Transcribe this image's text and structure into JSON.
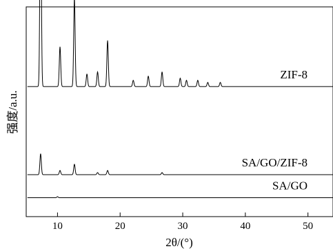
{
  "chart_data": {
    "type": "line",
    "xlabel": "2θ/(°)",
    "ylabel": "强度/a.u.",
    "xlim": [
      5,
      54
    ],
    "xticks": [
      "10",
      "20",
      "30",
      "40",
      "50"
    ],
    "y_ticks_shown": false,
    "grid": false,
    "legend": "labels-on-curves",
    "series": [
      {
        "name": "ZIF-8",
        "offset": 0.62,
        "peaks": [
          {
            "x": 7.3,
            "h": 1.0
          },
          {
            "x": 10.4,
            "h": 0.19
          },
          {
            "x": 12.7,
            "h": 0.42
          },
          {
            "x": 14.7,
            "h": 0.06
          },
          {
            "x": 16.4,
            "h": 0.07
          },
          {
            "x": 18.0,
            "h": 0.22
          },
          {
            "x": 22.1,
            "h": 0.03
          },
          {
            "x": 24.5,
            "h": 0.05
          },
          {
            "x": 26.7,
            "h": 0.07
          },
          {
            "x": 29.6,
            "h": 0.04
          },
          {
            "x": 30.6,
            "h": 0.03
          },
          {
            "x": 32.4,
            "h": 0.03
          },
          {
            "x": 34.0,
            "h": 0.02
          },
          {
            "x": 36.0,
            "h": 0.02
          }
        ]
      },
      {
        "name": "SA/GO/ZIF-8",
        "offset": 0.2,
        "peaks": [
          {
            "x": 7.3,
            "h": 0.1
          },
          {
            "x": 10.4,
            "h": 0.02
          },
          {
            "x": 12.7,
            "h": 0.05
          },
          {
            "x": 16.4,
            "h": 0.01
          },
          {
            "x": 18.0,
            "h": 0.02
          },
          {
            "x": 26.7,
            "h": 0.01
          }
        ]
      },
      {
        "name": "SA/GO",
        "offset": 0.09,
        "peaks": [
          {
            "x": 10.0,
            "h": 0.005
          }
        ]
      }
    ]
  }
}
